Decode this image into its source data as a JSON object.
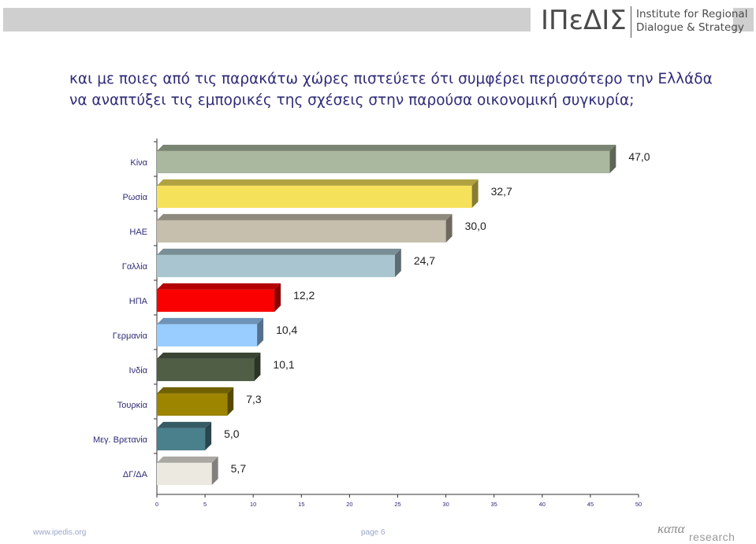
{
  "header": {
    "logo_mark": "ΙΠεΔΙΣ",
    "logo_text_line1": "Institute for Regional",
    "logo_text_line2": "Dialogue & Strategy"
  },
  "title_line1": "και με ποιες από τις παρακάτω χώρες πιστεύετε ότι συμφέρει περισσότερο την Ελλάδα",
  "title_line2": "να αναπτύξει τις εμπορικές της σχέσεις στην παρούσα οικονομική συγκυρία;",
  "chart_data": {
    "type": "bar",
    "orientation": "horizontal",
    "style": "3d",
    "categories": [
      "Κίνα",
      "Ρωσία",
      "ΗΑΕ",
      "Γαλλία",
      "ΗΠΑ",
      "Γερμανία",
      "Ινδία",
      "Τουρκία",
      "Μεγ. Βρετανία",
      "ΔΓ/ΔΑ"
    ],
    "values": [
      47.0,
      32.7,
      30.0,
      24.7,
      12.2,
      10.4,
      10.1,
      7.3,
      5.0,
      5.7
    ],
    "value_labels": [
      "47,0",
      "32,7",
      "30,0",
      "24,7",
      "12,2",
      "10,4",
      "10,1",
      "7,3",
      "5,0",
      "5,7"
    ],
    "colors": [
      "#a9b89f",
      "#f6e15a",
      "#c6bfad",
      "#a9c5cf",
      "#fa0000",
      "#99ccff",
      "#4f5e45",
      "#9d8500",
      "#4a7f8c",
      "#ece9e1"
    ],
    "xlim": [
      0,
      50
    ],
    "xticks": [
      "0",
      "5",
      "10",
      "15",
      "20",
      "25",
      "30",
      "35",
      "40",
      "45",
      "50"
    ],
    "grid": false,
    "legend": "none"
  },
  "footer": {
    "url": "www.ipedis.org",
    "page": "page 6",
    "logo_word1": "καπα",
    "logo_word2": "research"
  }
}
